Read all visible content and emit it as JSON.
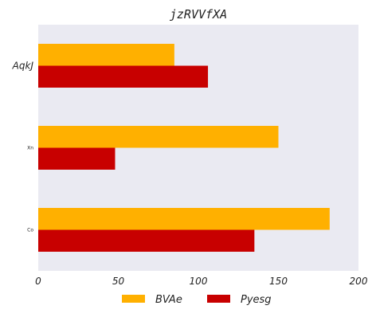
{
  "chart_data": {
    "type": "bar",
    "orientation": "horizontal",
    "title": "jzRVVfXA",
    "categories": [
      "AqkJ",
      "Xn",
      "Co"
    ],
    "series": [
      {
        "name": "BVAe",
        "color": "#ffb000",
        "values": [
          85,
          150,
          182
        ]
      },
      {
        "name": "Pyesg",
        "color": "#c80000",
        "values": [
          106,
          48,
          135
        ]
      }
    ],
    "xlim": [
      0,
      200
    ],
    "xticks": [
      0,
      50,
      100,
      150,
      200
    ],
    "xlabel": "",
    "ylabel": "",
    "grid": false,
    "legend": "bottom-center",
    "background": "#eaeaf2"
  }
}
